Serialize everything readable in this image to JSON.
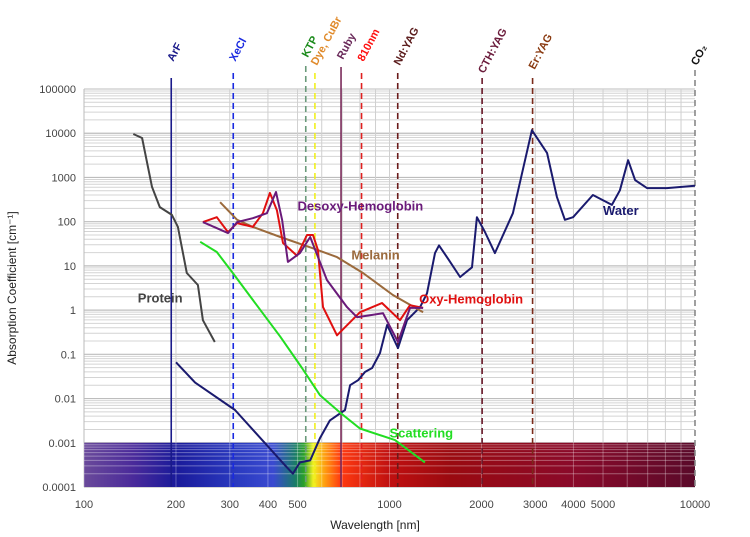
{
  "chart_data": {
    "type": "line",
    "xscale": "log",
    "yscale": "log",
    "xlabel": "Wavelength [nm]",
    "ylabel": "Absorption Coefficient [cm⁻¹]",
    "xlim": [
      100,
      10000
    ],
    "ylim": [
      0.0001,
      100000
    ],
    "grid": true,
    "x_ticks": [
      "100",
      "200",
      "300",
      "400",
      "500",
      "1000",
      "2000",
      "3000",
      "4000",
      "5000",
      "10000"
    ],
    "x_tick_values": [
      100,
      200,
      300,
      400,
      500,
      1000,
      2000,
      3000,
      4000,
      5000,
      10000
    ],
    "y_ticks": [
      "100000",
      "10000",
      "1000",
      "100",
      "10",
      "1",
      "0.1",
      "0.01",
      "0.001",
      "0.0001"
    ],
    "y_tick_values": [
      100000,
      10000,
      1000,
      100,
      10,
      1,
      0.1,
      0.01,
      0.001,
      0.0001
    ],
    "spectrum_band": {
      "from": 0.0001,
      "to": 0.001
    },
    "series": [
      {
        "name": "Water",
        "color": "#1a1a6e",
        "points": [
          [
            200,
            0.066
          ],
          [
            231,
            0.023
          ],
          [
            312,
            0.0055
          ],
          [
            383,
            0.00115
          ],
          [
            455,
            0.00031
          ],
          [
            483,
            0.0002
          ],
          [
            509,
            0.00036
          ],
          [
            550,
            0.0004
          ],
          [
            592,
            0.00126
          ],
          [
            638,
            0.0032
          ],
          [
            715,
            0.0055
          ],
          [
            743,
            0.02
          ],
          [
            789,
            0.026
          ],
          [
            832,
            0.04
          ],
          [
            877,
            0.049
          ],
          [
            931,
            0.107
          ],
          [
            982,
            0.46
          ],
          [
            1066,
            0.138
          ],
          [
            1141,
            0.59
          ],
          [
            1259,
            1.17
          ],
          [
            1327,
            2.4
          ],
          [
            1409,
            19.5
          ],
          [
            1452,
            29
          ],
          [
            1560,
            14
          ],
          [
            1702,
            5.6
          ],
          [
            1862,
            9.3
          ],
          [
            1933,
            126
          ],
          [
            2050,
            60
          ],
          [
            2213,
            19.5
          ],
          [
            2535,
            155
          ],
          [
            2924,
            11700
          ],
          [
            3280,
            3550
          ],
          [
            3532,
            363
          ],
          [
            3750,
            110
          ],
          [
            3990,
            126
          ],
          [
            4634,
            400
          ],
          [
            5346,
            240
          ],
          [
            5678,
            513
          ],
          [
            6039,
            2450
          ],
          [
            6368,
            870
          ],
          [
            6966,
            575
          ],
          [
            8091,
            575
          ],
          [
            10000,
            650
          ]
        ]
      },
      {
        "name": "Protein",
        "color": "#444444",
        "points": [
          [
            145,
            9600
          ],
          [
            155,
            7800
          ],
          [
            167,
            610
          ],
          [
            177,
            213
          ],
          [
            194,
            142
          ],
          [
            203,
            76
          ],
          [
            217,
            6.9
          ],
          [
            236,
            3.7
          ],
          [
            245,
            0.59
          ],
          [
            268,
            0.19
          ]
        ]
      },
      {
        "name": "Scattering",
        "color": "#22dd22",
        "points": [
          [
            240,
            35
          ],
          [
            272,
            20.6
          ],
          [
            307,
            6.9
          ],
          [
            357,
            1.7
          ],
          [
            439,
            0.25
          ],
          [
            517,
            0.049
          ],
          [
            592,
            0.012
          ],
          [
            687,
            0.0049
          ],
          [
            800,
            0.0021
          ],
          [
            1042,
            0.00115
          ],
          [
            1306,
            0.00036
          ]
        ]
      },
      {
        "name": "Melanin",
        "color": "#9b6a3c",
        "points": [
          [
            279,
            275
          ],
          [
            317,
            110
          ],
          [
            357,
            76
          ],
          [
            439,
            45
          ],
          [
            562,
            25
          ],
          [
            673,
            15.8
          ],
          [
            819,
            6.9
          ],
          [
            1026,
            2.2
          ],
          [
            1288,
            0.89
          ]
        ]
      },
      {
        "name": "Oxy-Hemoglobin",
        "color": "#e01010",
        "points": [
          [
            245,
            98
          ],
          [
            272,
            126
          ],
          [
            296,
            58
          ],
          [
            317,
            93
          ],
          [
            357,
            76
          ],
          [
            385,
            155
          ],
          [
            406,
            447
          ],
          [
            428,
            182
          ],
          [
            448,
            33
          ],
          [
            498,
            17
          ],
          [
            537,
            50
          ],
          [
            562,
            50
          ],
          [
            583,
            23
          ],
          [
            606,
            1.17
          ],
          [
            673,
            0.27
          ],
          [
            800,
            0.89
          ],
          [
            945,
            1.45
          ],
          [
            1082,
            0.59
          ],
          [
            1167,
            1.29
          ],
          [
            1288,
            1.12
          ]
        ]
      },
      {
        "name": "Desoxy-Hemoglobin",
        "color": "#6a1a7a",
        "points": [
          [
            245,
            98
          ],
          [
            296,
            55
          ],
          [
            317,
            98
          ],
          [
            357,
            120
          ],
          [
            397,
            155
          ],
          [
            425,
            468
          ],
          [
            445,
            110
          ],
          [
            465,
            12.3
          ],
          [
            509,
            19.5
          ],
          [
            550,
            45
          ],
          [
            624,
            4.8
          ],
          [
            726,
            1.17
          ],
          [
            783,
            0.69
          ],
          [
            952,
            0.85
          ],
          [
            1066,
            0.19
          ],
          [
            1167,
            1.12
          ],
          [
            1288,
            1.12
          ]
        ]
      }
    ],
    "curve_labels": [
      {
        "text": "Protein",
        "series": "Protein",
        "at": [
          150,
          1.5
        ]
      },
      {
        "text": "Desoxy-Hemoglobin",
        "series": "Desoxy-Hemoglobin",
        "at": [
          500,
          180
        ]
      },
      {
        "text": "Melanin",
        "series": "Melanin",
        "at": [
          750,
          14
        ]
      },
      {
        "text": "Oxy-Hemoglobin",
        "series": "Oxy-Hemoglobin",
        "at": [
          1250,
          1.4
        ]
      },
      {
        "text": "Water",
        "series": "Water",
        "at": [
          5000,
          140
        ]
      },
      {
        "text": "Scattering",
        "series": "Scattering",
        "at": [
          1000,
          0.0013
        ]
      }
    ],
    "lasers": [
      {
        "name": "ArF",
        "wavelength": 193,
        "color": "#1a1a8a",
        "label_color": "#1a1a8a",
        "style": "solid"
      },
      {
        "name": "XeCl",
        "wavelength": 308,
        "color": "#1a2ae0",
        "label_color": "#1a2ae0",
        "style": "dashed"
      },
      {
        "name": "KTP",
        "wavelength": 532,
        "color": "#6a9a7a",
        "label_color": "#1a8a1a",
        "style": "dashed"
      },
      {
        "name": "Dye, CuBr",
        "wavelength": 570,
        "color": "#f0f020",
        "label_color": "#e08a2a",
        "style": "dashed"
      },
      {
        "name": "Ruby",
        "wavelength": 694,
        "color": "#7a2a5a",
        "label_color": "#6a2a5a",
        "style": "solid"
      },
      {
        "name": "810nm",
        "wavelength": 810,
        "color": "#e02020",
        "label_color": "#ff1010",
        "style": "dashed"
      },
      {
        "name": "Nd:YAG",
        "wavelength": 1064,
        "color": "#6a1a1a",
        "label_color": "#5a1a1a",
        "style": "dashed"
      },
      {
        "name": "CTH:YAG",
        "wavelength": 2010,
        "color": "#6a1a2a",
        "label_color": "#6a1a3a",
        "style": "dashed"
      },
      {
        "name": "Er:YAG",
        "wavelength": 2940,
        "color": "#7a2a1a",
        "label_color": "#8a3a10",
        "style": "dashed"
      },
      {
        "name": "CO₂",
        "wavelength": 10000,
        "color": "#888888",
        "label_color": "#111111",
        "style": "dashed"
      }
    ]
  }
}
